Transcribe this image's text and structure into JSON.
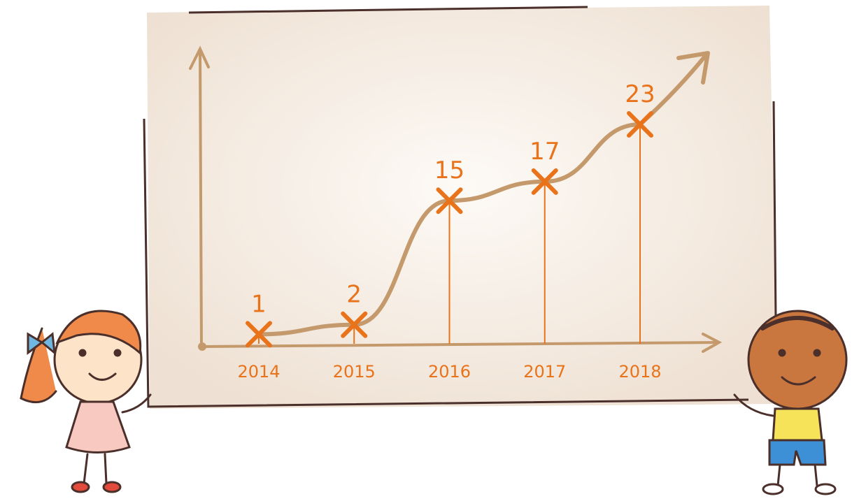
{
  "chart_data": {
    "type": "line",
    "categories": [
      "2014",
      "2015",
      "2016",
      "2017",
      "2018"
    ],
    "values": [
      1,
      2,
      15,
      17,
      23
    ],
    "color": "#e8731a"
  }
}
